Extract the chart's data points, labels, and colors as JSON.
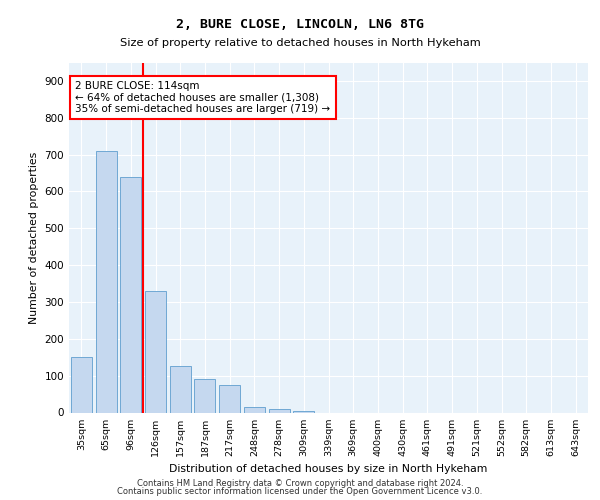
{
  "title1": "2, BURE CLOSE, LINCOLN, LN6 8TG",
  "title2": "Size of property relative to detached houses in North Hykeham",
  "xlabel": "Distribution of detached houses by size in North Hykeham",
  "ylabel": "Number of detached properties",
  "bar_color": "#C5D8EF",
  "bar_edge_color": "#6FA8D4",
  "background_color": "#E8F2FA",
  "categories": [
    "35sqm",
    "65sqm",
    "96sqm",
    "126sqm",
    "157sqm",
    "187sqm",
    "217sqm",
    "248sqm",
    "278sqm",
    "309sqm",
    "339sqm",
    "369sqm",
    "400sqm",
    "430sqm",
    "461sqm",
    "491sqm",
    "521sqm",
    "552sqm",
    "582sqm",
    "613sqm",
    "643sqm"
  ],
  "values": [
    150,
    710,
    640,
    330,
    125,
    90,
    75,
    15,
    10,
    5,
    0,
    0,
    0,
    0,
    0,
    0,
    0,
    0,
    0,
    0,
    0
  ],
  "red_line_x": 2.5,
  "annotation_text": "2 BURE CLOSE: 114sqm\n← 64% of detached houses are smaller (1,308)\n35% of semi-detached houses are larger (719) →",
  "ylim": [
    0,
    950
  ],
  "yticks": [
    0,
    100,
    200,
    300,
    400,
    500,
    600,
    700,
    800,
    900
  ],
  "footer1": "Contains HM Land Registry data © Crown copyright and database right 2024.",
  "footer2": "Contains public sector information licensed under the Open Government Licence v3.0."
}
